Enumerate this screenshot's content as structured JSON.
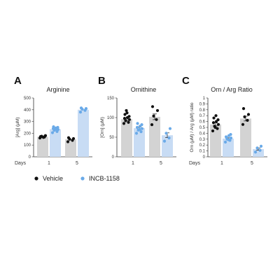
{
  "colors": {
    "vehicle_bar": "#d3d3d3",
    "treated_bar": "#c8dcf4",
    "vehicle_point": "#111111",
    "treated_point": "#6aaae8",
    "axis": "#333333"
  },
  "x_axis_prefix": "Days",
  "legend": [
    {
      "label": "Vehicle",
      "color": "#111111"
    },
    {
      "label": "INCB-1158",
      "color": "#6aaae8"
    }
  ],
  "chart_data": [
    {
      "type": "bar",
      "panel": "A",
      "title": "Arginine",
      "ylabel": "[Arg] (μM)",
      "ylim": [
        0,
        500
      ],
      "yticks": [
        0,
        100,
        200,
        300,
        400,
        500
      ],
      "categories": [
        "1",
        "5"
      ],
      "series": [
        {
          "name": "Vehicle",
          "values": [
            170,
            148
          ],
          "points": [
            [
              160,
              168,
              175,
              180,
              172,
              165,
              178,
              170
            ],
            [
              128,
              140,
              150,
              155,
              162
            ]
          ]
        },
        {
          "name": "INCB-1158",
          "values": [
            235,
            400
          ],
          "points": [
            [
              205,
              215,
              225,
              232,
              240,
              245,
              250,
              255,
              236
            ],
            [
              380,
              395,
              405,
              410,
              415
            ]
          ]
        }
      ],
      "error_bars": false
    },
    {
      "type": "bar",
      "panel": "B",
      "title": "Ornithine",
      "ylabel": "[Orn] (μM)",
      "ylim": [
        0,
        150
      ],
      "yticks": [
        0,
        50,
        100,
        150
      ],
      "categories": [
        "1",
        "5"
      ],
      "series": [
        {
          "name": "Vehicle",
          "values": [
            96,
            102
          ],
          "points": [
            [
              85,
              88,
              92,
              95,
              98,
              100,
              103,
              108,
              112,
              118
            ],
            [
              82,
              95,
              104,
              118,
              128
            ]
          ]
        },
        {
          "name": "INCB-1158",
          "values": [
            73,
            55
          ],
          "points": [
            [
              60,
              64,
              68,
              72,
              75,
              78,
              82,
              85,
              70
            ],
            [
              40,
              48,
              60,
              72
            ]
          ]
        }
      ],
      "error_bars": true
    },
    {
      "type": "bar",
      "panel": "C",
      "title": "Orn / Arg Ratio",
      "ylabel": "Orn (μM) / Arg (μM) ratio",
      "ylim": [
        0,
        1.0
      ],
      "yticks": [
        0,
        0.1,
        0.2,
        0.3,
        0.4,
        0.5,
        0.6,
        0.7,
        0.8,
        0.9,
        1.0
      ],
      "categories": [
        "1",
        "5"
      ],
      "series": [
        {
          "name": "Vehicle",
          "values": [
            0.55,
            0.65
          ],
          "points": [
            [
              0.44,
              0.48,
              0.52,
              0.55,
              0.58,
              0.6,
              0.63,
              0.66,
              0.7,
              0.5
            ],
            [
              0.55,
              0.62,
              0.68,
              0.72,
              0.82
            ]
          ]
        },
        {
          "name": "INCB-1158",
          "values": [
            0.31,
            0.13
          ],
          "points": [
            [
              0.25,
              0.28,
              0.3,
              0.32,
              0.34,
              0.36,
              0.38,
              0.33,
              0.29
            ],
            [
              0.08,
              0.11,
              0.15,
              0.18
            ]
          ]
        }
      ],
      "error_bars": true
    }
  ]
}
